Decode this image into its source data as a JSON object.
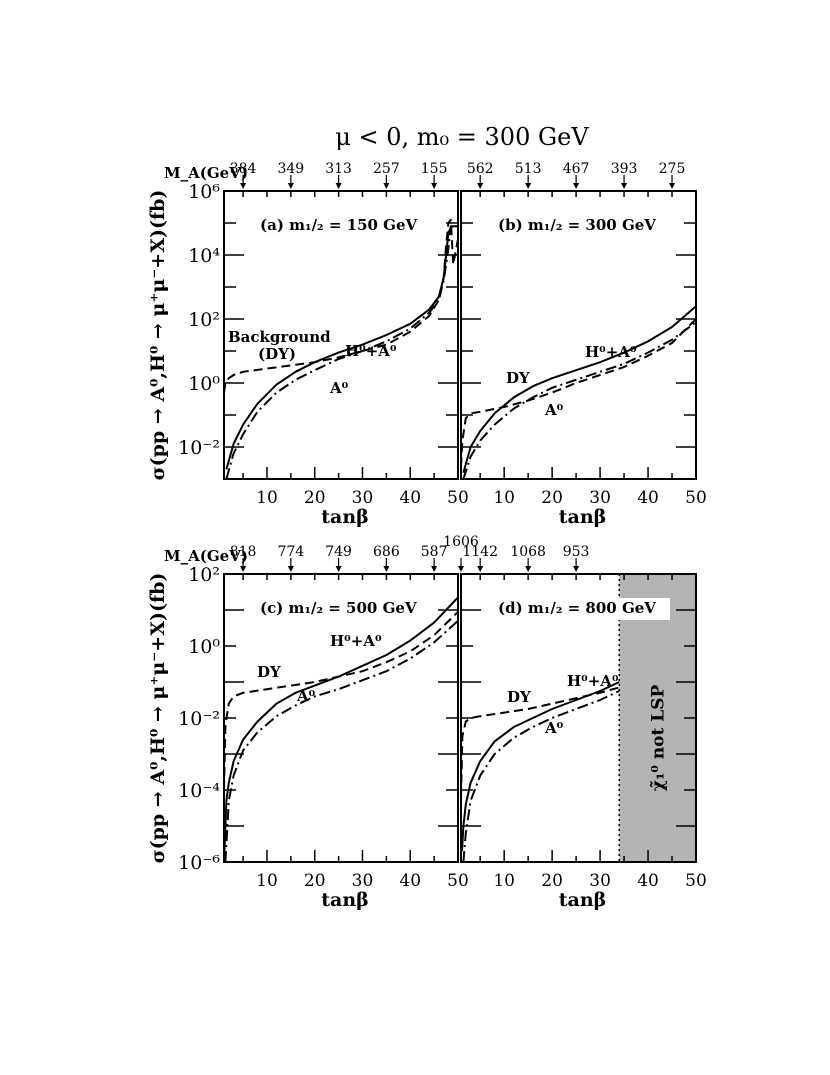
{
  "figure": {
    "title": "μ < 0, m₀ = 300 GeV",
    "ylabel": "σ(pp → A⁰,H⁰ → μ⁺μ⁻+X)(fb)",
    "top_axis_label": "M_A(GeV)",
    "x_ticks": [
      "10",
      "20",
      "30",
      "40",
      "50"
    ]
  },
  "chart_data": [
    {
      "type": "line",
      "panel_label": "(a) m₁/₂ = 150 GeV",
      "xlabel": "tanβ",
      "xlim": [
        1,
        50
      ],
      "y_log_range": [
        -3,
        6
      ],
      "y_tick_labels": [
        "10⁻²",
        "10⁰",
        "10²",
        "10⁴",
        "10⁶"
      ],
      "top_ticks": [
        {
          "tanb": 5,
          "label": "384"
        },
        {
          "tanb": 15,
          "label": "349"
        },
        {
          "tanb": 25,
          "label": "313"
        },
        {
          "tanb": 35,
          "label": "257"
        },
        {
          "tanb": 45,
          "label": "155"
        }
      ],
      "series": [
        {
          "style": "solid",
          "label": "H⁰+A⁰",
          "x": [
            1.5,
            3,
            5,
            8,
            12,
            16,
            20,
            25,
            30,
            35,
            40,
            44,
            46,
            47,
            47.5,
            48,
            48.5,
            49,
            50
          ],
          "log10_y": [
            -2.7,
            -1.9,
            -1.3,
            -0.65,
            -0.05,
            0.35,
            0.65,
            0.95,
            1.2,
            1.5,
            1.85,
            2.3,
            2.7,
            3.3,
            4.0,
            4.7,
            4.85,
            4.9,
            4.9
          ]
        },
        {
          "style": "dashdot",
          "label": "A⁰",
          "x": [
            1.5,
            3,
            5,
            8,
            12,
            16,
            20,
            25,
            30,
            35,
            40,
            44,
            46,
            47,
            48,
            48.5,
            49,
            50
          ],
          "log10_y": [
            -3.0,
            -2.2,
            -1.6,
            -0.9,
            -0.3,
            0.1,
            0.4,
            0.75,
            1.0,
            1.3,
            1.7,
            2.2,
            2.6,
            3.2,
            4.2,
            4.9,
            4.9,
            4.9
          ]
        },
        {
          "style": "dashed",
          "label": "Background (DY)",
          "x": [
            1,
            1.3,
            2,
            3,
            5,
            10,
            15,
            20,
            25,
            30,
            35,
            40,
            44,
            46,
            47,
            47.5,
            48,
            48.5,
            49,
            50
          ],
          "log10_y": [
            -0.3,
            0.0,
            0.15,
            0.25,
            0.35,
            0.45,
            0.55,
            0.65,
            0.8,
            1.0,
            1.2,
            1.6,
            2.1,
            2.6,
            3.3,
            4.3,
            5.0,
            5.1,
            3.7,
            4.5
          ]
        }
      ],
      "annotations": [
        "Background",
        "(DY)",
        "H⁰+A⁰",
        "A⁰"
      ]
    },
    {
      "type": "line",
      "panel_label": "(b) m₁/₂ = 300 GeV",
      "xlabel": "tanβ",
      "xlim": [
        1,
        50
      ],
      "y_log_range": [
        -3,
        6
      ],
      "top_ticks": [
        {
          "tanb": 5,
          "label": "562"
        },
        {
          "tanb": 15,
          "label": "513"
        },
        {
          "tanb": 25,
          "label": "467"
        },
        {
          "tanb": 35,
          "label": "393"
        },
        {
          "tanb": 45,
          "label": "275"
        }
      ],
      "series": [
        {
          "style": "solid",
          "label": "H⁰+A⁰",
          "x": [
            1.5,
            3,
            5,
            8,
            12,
            16,
            20,
            25,
            30,
            35,
            40,
            45,
            50
          ],
          "log10_y": [
            -2.8,
            -2.0,
            -1.5,
            -0.95,
            -0.45,
            -0.1,
            0.15,
            0.4,
            0.65,
            0.95,
            1.3,
            1.75,
            2.4
          ]
        },
        {
          "style": "dashdot",
          "label": "A⁰",
          "x": [
            1.5,
            3,
            5,
            8,
            12,
            16,
            20,
            25,
            30,
            35,
            40,
            45,
            50
          ],
          "log10_y": [
            -3.0,
            -2.3,
            -1.8,
            -1.3,
            -0.8,
            -0.45,
            -0.15,
            0.1,
            0.35,
            0.6,
            0.95,
            1.35,
            1.9
          ]
        },
        {
          "style": "dashed",
          "label": "DY",
          "x": [
            1,
            1.3,
            2,
            3,
            5,
            10,
            15,
            20,
            25,
            30,
            35,
            40,
            45,
            50
          ],
          "log10_y": [
            -2.6,
            -1.8,
            -1.1,
            -0.95,
            -0.9,
            -0.75,
            -0.55,
            -0.3,
            0.0,
            0.25,
            0.5,
            0.85,
            1.25,
            2.0
          ]
        }
      ],
      "annotations": [
        "DY",
        "H⁰+A⁰",
        "A⁰"
      ]
    },
    {
      "type": "line",
      "panel_label": "(c) m₁/₂ = 500 GeV",
      "xlabel": "tanβ",
      "xlim": [
        1,
        50
      ],
      "y_log_range": [
        -6,
        2
      ],
      "y_tick_labels": [
        "10⁻⁶",
        "10⁻⁴",
        "10⁻²",
        "10⁰",
        "10²"
      ],
      "top_ticks": [
        {
          "tanb": 5,
          "label": "818"
        },
        {
          "tanb": 15,
          "label": "774"
        },
        {
          "tanb": 25,
          "label": "749"
        },
        {
          "tanb": 35,
          "label": "686"
        },
        {
          "tanb": 45,
          "label": "587"
        }
      ],
      "series": [
        {
          "style": "solid",
          "label": "H⁰+A⁰",
          "x": [
            1,
            1.5,
            2,
            3,
            5,
            8,
            12,
            16,
            20,
            25,
            30,
            35,
            40,
            45,
            50
          ],
          "log10_y": [
            -6.0,
            -4.3,
            -3.8,
            -3.2,
            -2.6,
            -2.1,
            -1.6,
            -1.3,
            -1.1,
            -0.85,
            -0.55,
            -0.25,
            0.15,
            0.65,
            1.35
          ]
        },
        {
          "style": "dashdot",
          "label": "A⁰",
          "x": [
            1.3,
            2,
            3,
            5,
            8,
            12,
            16,
            20,
            25,
            30,
            35,
            40,
            45,
            50
          ],
          "log10_y": [
            -6.0,
            -4.3,
            -3.6,
            -2.9,
            -2.4,
            -1.95,
            -1.65,
            -1.4,
            -1.2,
            -0.95,
            -0.7,
            -0.35,
            0.1,
            0.7
          ]
        },
        {
          "style": "dashed",
          "label": "DY",
          "x": [
            1,
            1.3,
            2,
            3,
            5,
            10,
            15,
            20,
            25,
            30,
            35,
            40,
            45,
            50
          ],
          "log10_y": [
            -4.0,
            -2.2,
            -1.6,
            -1.4,
            -1.3,
            -1.2,
            -1.1,
            -1.0,
            -0.85,
            -0.7,
            -0.45,
            -0.15,
            0.3,
            0.95
          ]
        }
      ],
      "annotations": [
        "DY",
        "H⁰+A⁰",
        "A⁰"
      ]
    },
    {
      "type": "line",
      "panel_label": "(d) m₁/₂ = 800 GeV",
      "xlabel": "tanβ",
      "xlim": [
        1,
        50
      ],
      "y_log_range": [
        -6,
        2
      ],
      "shaded_region": {
        "x_from": 34,
        "x_to": 50,
        "label": "χ̃₁⁰ not LSP"
      },
      "top_ticks": [
        {
          "tanb": 1,
          "label": "1606"
        },
        {
          "tanb": 5,
          "label": "1142"
        },
        {
          "tanb": 15,
          "label": "1068"
        },
        {
          "tanb": 25,
          "label": "953"
        }
      ],
      "series": [
        {
          "style": "solid",
          "label": "H⁰+A⁰",
          "x": [
            1.2,
            1.5,
            2,
            3,
            5,
            8,
            12,
            16,
            20,
            25,
            30,
            34
          ],
          "log10_y": [
            -5.7,
            -5.0,
            -4.4,
            -3.8,
            -3.2,
            -2.65,
            -2.25,
            -2.0,
            -1.75,
            -1.5,
            -1.25,
            -1.0
          ]
        },
        {
          "style": "dashdot",
          "label": "A⁰",
          "x": [
            1.5,
            2,
            3,
            5,
            8,
            12,
            16,
            20,
            25,
            30,
            34
          ],
          "log10_y": [
            -6.0,
            -5.2,
            -4.3,
            -3.6,
            -3.0,
            -2.55,
            -2.25,
            -2.0,
            -1.75,
            -1.5,
            -1.25
          ]
        },
        {
          "style": "dashed",
          "label": "DY",
          "x": [
            1,
            1.3,
            2,
            3,
            5,
            10,
            15,
            20,
            25,
            30,
            34
          ],
          "log10_y": [
            -4.2,
            -2.5,
            -2.1,
            -2.0,
            -1.95,
            -1.85,
            -1.75,
            -1.6,
            -1.45,
            -1.3,
            -1.15
          ]
        }
      ],
      "annotations": [
        "DY",
        "H⁰+A⁰",
        "A⁰"
      ]
    }
  ]
}
